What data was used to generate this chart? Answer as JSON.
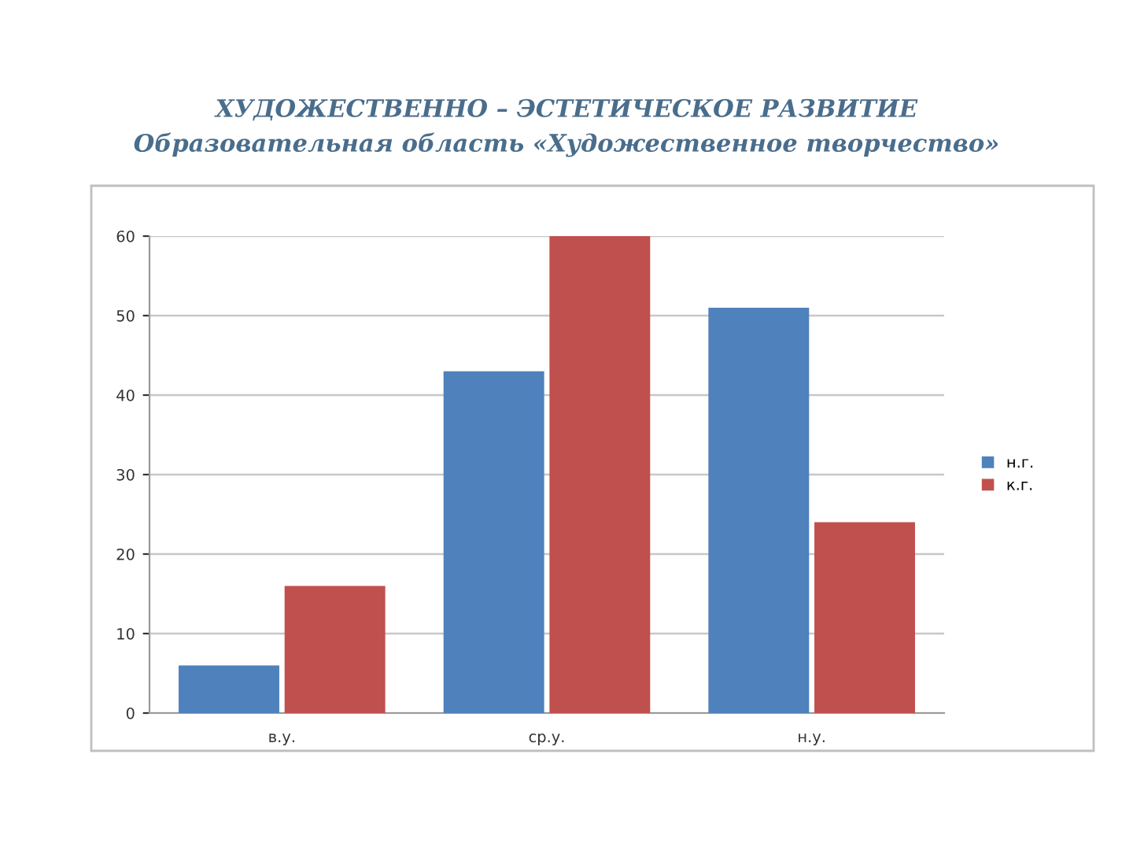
{
  "chart_data": {
    "type": "bar",
    "title": "ХУДОЖЕСТВЕННО – ЭСТЕТИЧЕСКОЕ РАЗВИТИЕ",
    "subtitle": "Образовательная область «Художественное творчество»",
    "categories": [
      "в.у.",
      "ср.у.",
      "н.у."
    ],
    "series": [
      {
        "name": "н.г.",
        "color": "#4f81bd",
        "values": [
          6,
          43,
          51
        ]
      },
      {
        "name": "к.г.",
        "color": "#c0504d",
        "values": [
          16,
          60,
          24
        ]
      }
    ],
    "ylim": [
      0,
      60
    ],
    "yticks": [
      0,
      10,
      20,
      30,
      40,
      50,
      60
    ],
    "grid": "y",
    "legend": "right"
  }
}
